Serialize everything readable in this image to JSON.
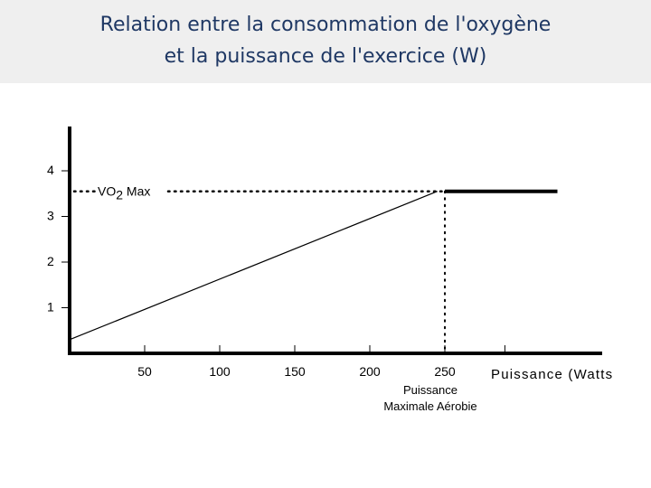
{
  "title": {
    "line1": "Relation entre la consommation de l'oxygène",
    "line2": "et la puissance de l'exercice (W)"
  },
  "chart_data": {
    "type": "line",
    "title": "Relation entre la consommation de l'oxygène et la puissance de l'exercice (W)",
    "xlabel": "Puissance (Watts",
    "ylabel": "",
    "x_ticks": [
      50,
      100,
      150,
      200,
      250
    ],
    "y_ticks": [
      1,
      2,
      3,
      4
    ],
    "xlim": [
      0,
      350
    ],
    "ylim": [
      0,
      4
    ],
    "grid": false,
    "series": [
      {
        "points": [
          [
            0,
            0.3
          ],
          [
            245,
            3.55
          ],
          [
            250,
            3.55
          ],
          [
            325,
            3.55
          ]
        ]
      }
    ],
    "annotations": {
      "vo2max_label_main": "VO",
      "vo2max_label_sub": "2",
      "vo2max_label_rest": " Max",
      "vo2max_value": 3.55,
      "pma_x": 250,
      "pma_line1": "Puissance",
      "pma_line2": "Maximale Aérobie"
    }
  }
}
